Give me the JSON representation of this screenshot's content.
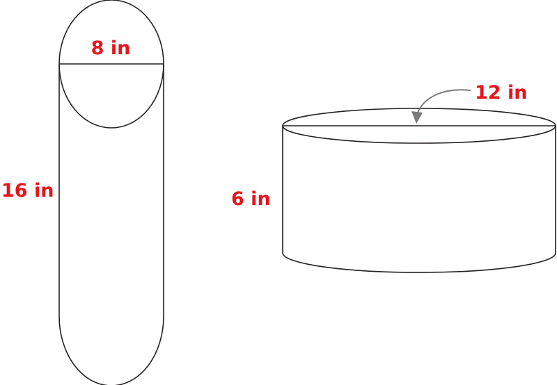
{
  "colors": {
    "label": "#e8141b",
    "outline": "#231f20",
    "arrow": "#7a7a7a"
  },
  "tall_cylinder": {
    "diameter_label": "8 in",
    "height_label": "16 in"
  },
  "short_cylinder": {
    "diameter_label": "12 in",
    "height_label": "6 in"
  }
}
